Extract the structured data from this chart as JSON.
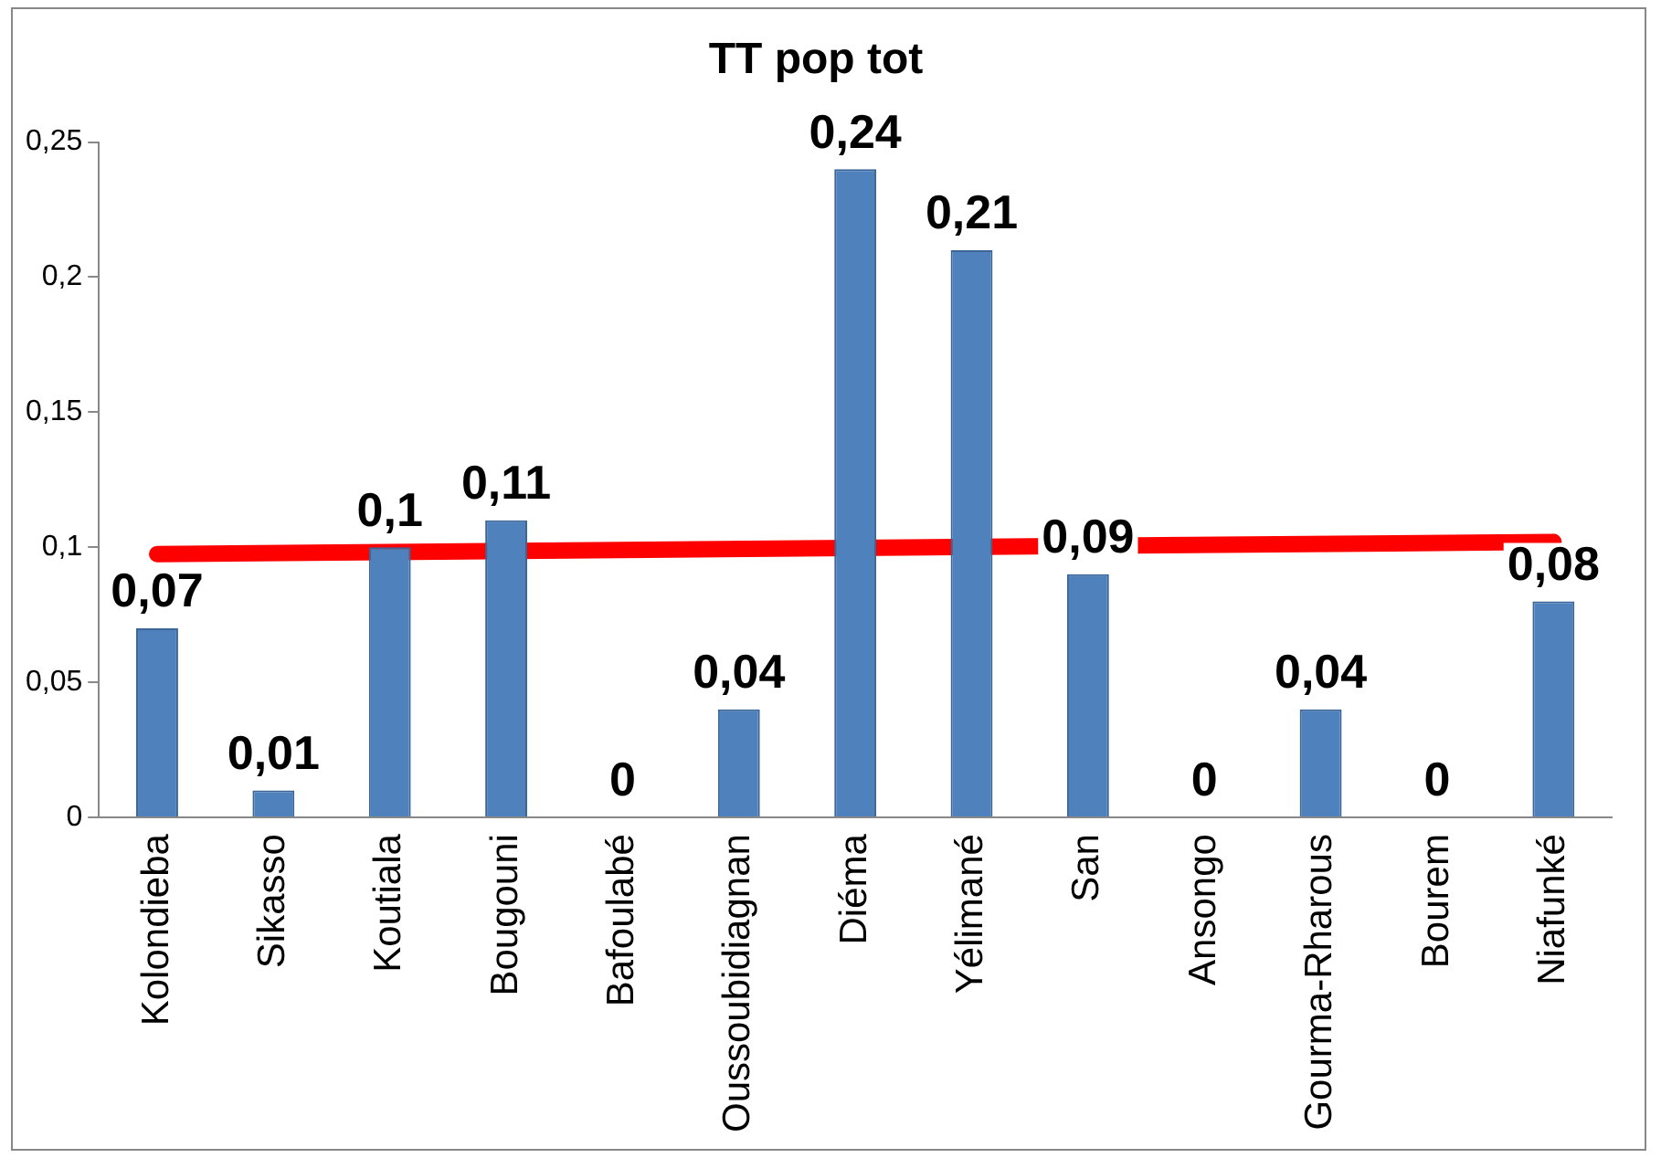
{
  "chart_data": {
    "type": "bar",
    "title": "TT pop tot",
    "categories": [
      "Kolondieba",
      "Sikasso",
      "Koutiala",
      "Bougouni",
      "Bafoulabé",
      "Oussoubidiagnan",
      "Diéma",
      "Yélimané",
      "San",
      "Ansongo",
      "Gourma-Rharous",
      "Bourem",
      "Niafunké"
    ],
    "series": [
      {
        "color": "#4f81bd",
        "values": [
          0.07,
          0.01,
          0.1,
          0.11,
          0,
          0.04,
          0.24,
          0.21,
          0.09,
          0,
          0.04,
          0,
          0.08
        ],
        "value_labels": [
          "0,07",
          "0,01",
          "0,1",
          "0,11",
          "0",
          "0,04",
          "0,24",
          "0,21",
          "0,09",
          "0",
          "0,04",
          "0",
          "0,08"
        ]
      },
      {
        "type": "line",
        "color": "#ff0000",
        "values": [
          0.0975,
          null,
          null,
          null,
          null,
          null,
          null,
          null,
          null,
          null,
          null,
          null,
          0.102
        ]
      }
    ],
    "ylim": [
      0,
      0.25
    ],
    "yticks": [
      {
        "value": 0,
        "label": "0"
      },
      {
        "value": 0.05,
        "label": "0,05"
      },
      {
        "value": 0.1,
        "label": "0,1"
      },
      {
        "value": 0.15,
        "label": "0,15"
      },
      {
        "value": 0.2,
        "label": "0,2"
      },
      {
        "value": 0.25,
        "label": "0,25"
      }
    ],
    "grid": false,
    "legend": false
  }
}
